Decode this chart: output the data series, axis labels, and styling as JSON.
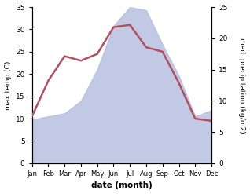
{
  "months": [
    "Jan",
    "Feb",
    "Mar",
    "Apr",
    "May",
    "Jun",
    "Jul",
    "Aug",
    "Sep",
    "Oct",
    "Nov",
    "Dec"
  ],
  "temperature": [
    10.5,
    18.5,
    24.0,
    23.0,
    24.5,
    30.5,
    31.0,
    26.0,
    25.0,
    18.0,
    10.0,
    9.5
  ],
  "precipitation": [
    7.0,
    7.5,
    8.0,
    10.0,
    15.0,
    22.0,
    25.0,
    24.5,
    19.0,
    14.0,
    7.5,
    8.5
  ],
  "temp_color": "#b05060",
  "precip_fill_color": "#b8c0e0",
  "temp_ylim": [
    0,
    35
  ],
  "precip_ylim": [
    0,
    25
  ],
  "temp_yticks": [
    0,
    5,
    10,
    15,
    20,
    25,
    30,
    35
  ],
  "precip_yticks": [
    0,
    5,
    10,
    15,
    20,
    25
  ],
  "xlabel": "date (month)",
  "ylabel_left": "max temp (C)",
  "ylabel_right": "med. precipitation (kg/m2)",
  "background_color": "#ffffff"
}
